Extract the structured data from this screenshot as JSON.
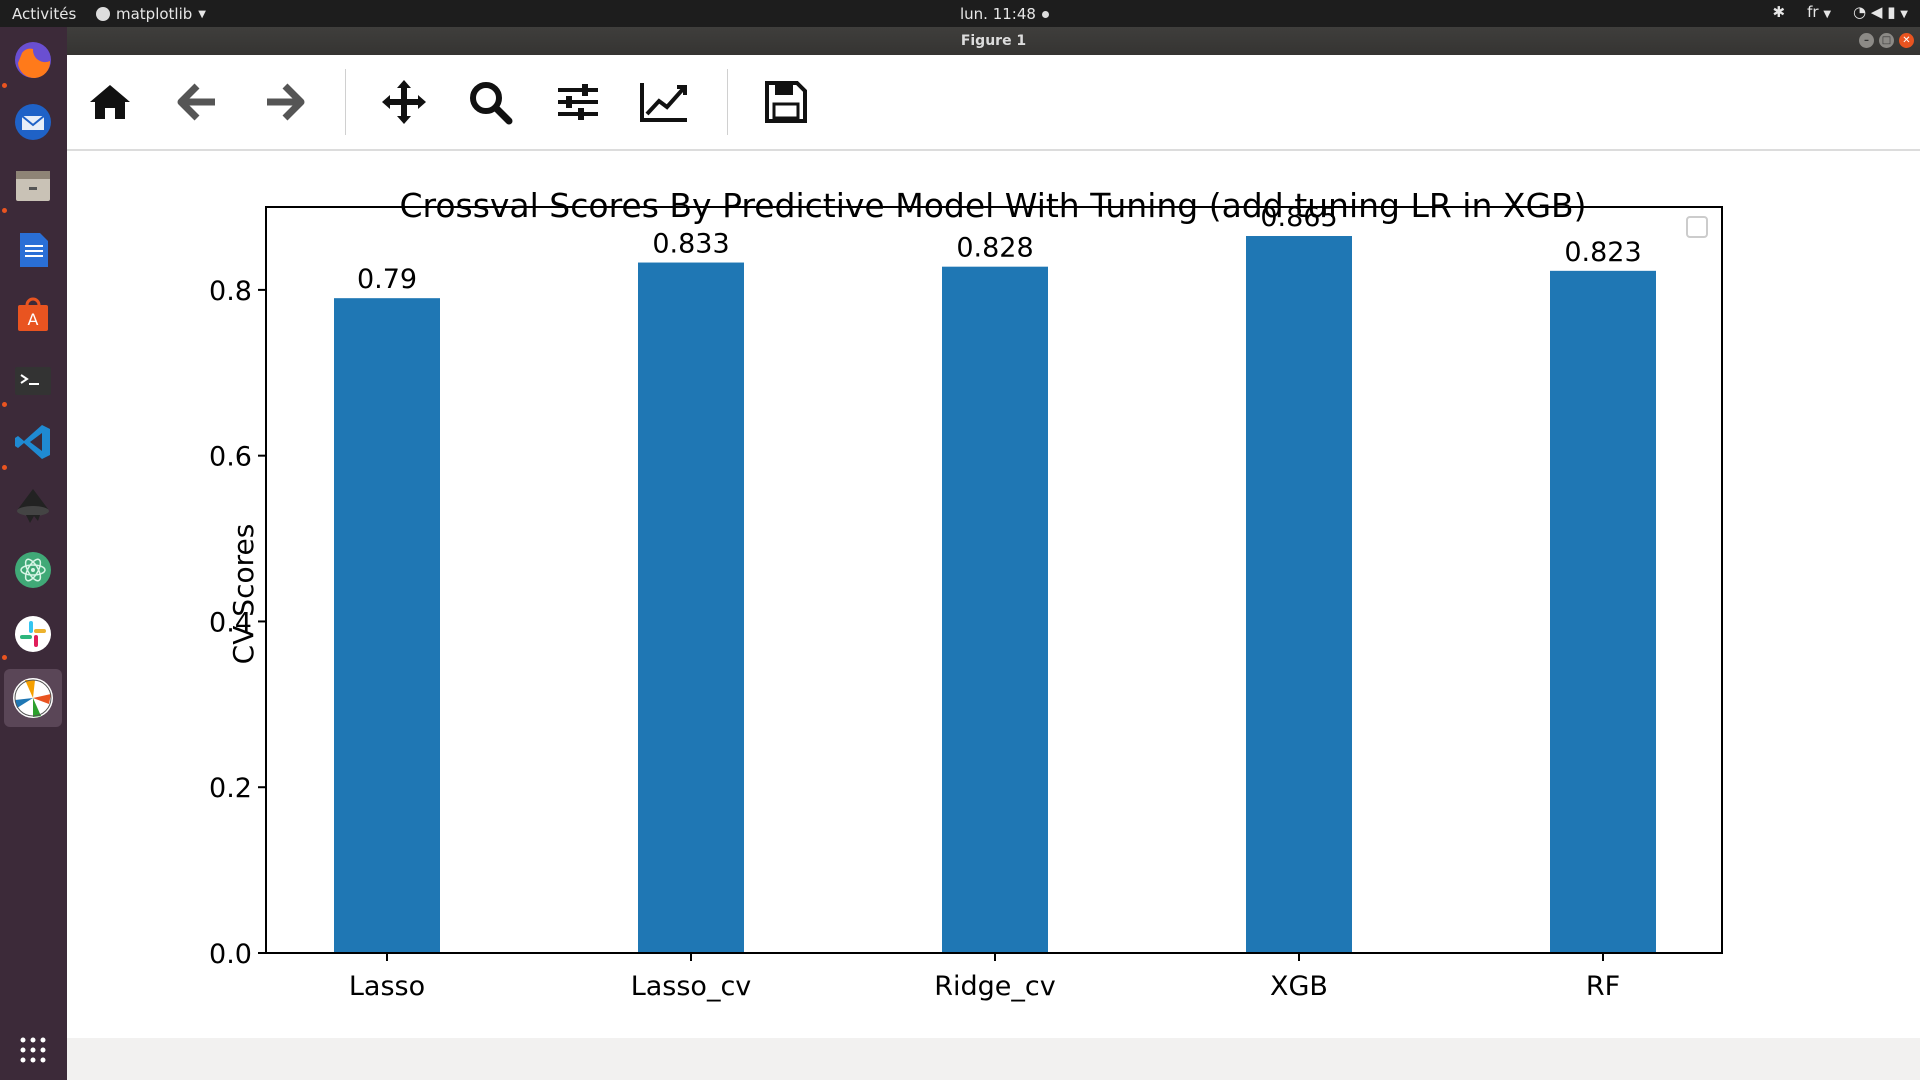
{
  "topbar": {
    "activities": "Activités",
    "app_name": "matplotlib",
    "clock": "lun. 11:48",
    "language": "fr"
  },
  "dock": {
    "apps": [
      "firefox-icon",
      "thunderbird-icon",
      "files-icon",
      "writer-icon",
      "software-icon",
      "terminal-icon",
      "vscode-icon",
      "inkscape-icon",
      "atom-icon",
      "slack-icon",
      "matplotlib-icon"
    ]
  },
  "window": {
    "title": "Figure 1"
  },
  "toolbar": {
    "buttons": [
      "home-icon",
      "back-icon",
      "forward-icon",
      "pan-icon",
      "zoom-icon",
      "configure-subplots-icon",
      "edit-axis-icon",
      "save-icon"
    ]
  },
  "chart_data": {
    "type": "bar",
    "title": "Crossval Scores By Predictive Model With Tuning (add tuning LR in XGB)",
    "xlabel": "",
    "ylabel": "CV Scores",
    "categories": [
      "Lasso",
      "Lasso_cv",
      "Ridge_cv",
      "XGB",
      "RF"
    ],
    "values": [
      0.79,
      0.833,
      0.828,
      0.865,
      0.823
    ],
    "value_labels": [
      "0.79",
      "0.833",
      "0.828",
      "0.865",
      "0.823"
    ],
    "yticks": [
      "0.0",
      "0.2",
      "0.4",
      "0.6",
      "0.8"
    ],
    "ylim": [
      0,
      0.9
    ],
    "bar_color": "#1f77b4",
    "grid": false,
    "legend": "top-right (empty)"
  }
}
